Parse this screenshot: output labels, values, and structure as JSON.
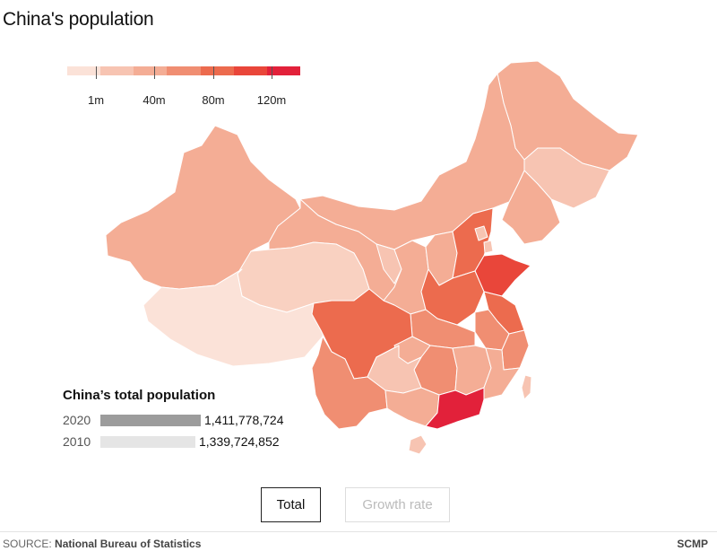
{
  "title": "China's population",
  "legend": {
    "colors": [
      "#fbe2d8",
      "#f7c4b2",
      "#f4ad95",
      "#f08e72",
      "#ec6b4e",
      "#e9463a",
      "#e2213a"
    ],
    "ticks": [
      "1m",
      "40m",
      "80m",
      "120m"
    ]
  },
  "provinces": [
    {
      "name": "Heilongjiang",
      "color": "#f4ad95"
    },
    {
      "name": "Jilin",
      "color": "#f7c4b2"
    },
    {
      "name": "Liaoning",
      "color": "#f4ad95"
    },
    {
      "name": "Inner Mongolia",
      "color": "#f4ad95"
    },
    {
      "name": "Xinjiang",
      "color": "#f4ad95"
    },
    {
      "name": "Gansu",
      "color": "#f4ad95"
    },
    {
      "name": "Ningxia",
      "color": "#f7c4b2"
    },
    {
      "name": "Qinghai",
      "color": "#f9d1c1"
    },
    {
      "name": "Tibet",
      "color": "#fbe2d8"
    },
    {
      "name": "Shaanxi",
      "color": "#f4ad95"
    },
    {
      "name": "Shanxi",
      "color": "#f4ad95"
    },
    {
      "name": "Hebei",
      "color": "#ec6b4e"
    },
    {
      "name": "Beijing",
      "color": "#f7c4b2"
    },
    {
      "name": "Tianjin",
      "color": "#f7c4b2"
    },
    {
      "name": "Shandong",
      "color": "#e9463a"
    },
    {
      "name": "Henan",
      "color": "#ec6b4e"
    },
    {
      "name": "Jiangsu",
      "color": "#ec6b4e"
    },
    {
      "name": "Anhui",
      "color": "#f08e72"
    },
    {
      "name": "Hubei",
      "color": "#f08e72"
    },
    {
      "name": "Sichuan",
      "color": "#ec6b4e"
    },
    {
      "name": "Chongqing",
      "color": "#f4ad95"
    },
    {
      "name": "Zhejiang",
      "color": "#f08e72"
    },
    {
      "name": "Hunan",
      "color": "#f08e72"
    },
    {
      "name": "Jiangxi",
      "color": "#f4ad95"
    },
    {
      "name": "Fujian",
      "color": "#f4ad95"
    },
    {
      "name": "Guizhou",
      "color": "#f7c4b2"
    },
    {
      "name": "Yunnan",
      "color": "#f08e72"
    },
    {
      "name": "Guangxi",
      "color": "#f4ad95"
    },
    {
      "name": "Guangdong",
      "color": "#e2213a"
    },
    {
      "name": "Hainan",
      "color": "#f7c4b2"
    },
    {
      "name": "Taiwan",
      "color": "#f7c4b2"
    }
  ],
  "total_population": {
    "title": "China’s total population",
    "rows": [
      {
        "year": "2020",
        "value": "1,411,778,724",
        "number": 1411778724,
        "color": "#9c9c9c"
      },
      {
        "year": "2010",
        "value": "1,339,724,852",
        "number": 1339724852,
        "color": "#e5e5e5"
      }
    ]
  },
  "buttons": {
    "total": "Total",
    "growth": "Growth rate"
  },
  "footer": {
    "source_label": "SOURCE:",
    "source": "National Bureau of Statistics",
    "brand": "SCMP"
  }
}
